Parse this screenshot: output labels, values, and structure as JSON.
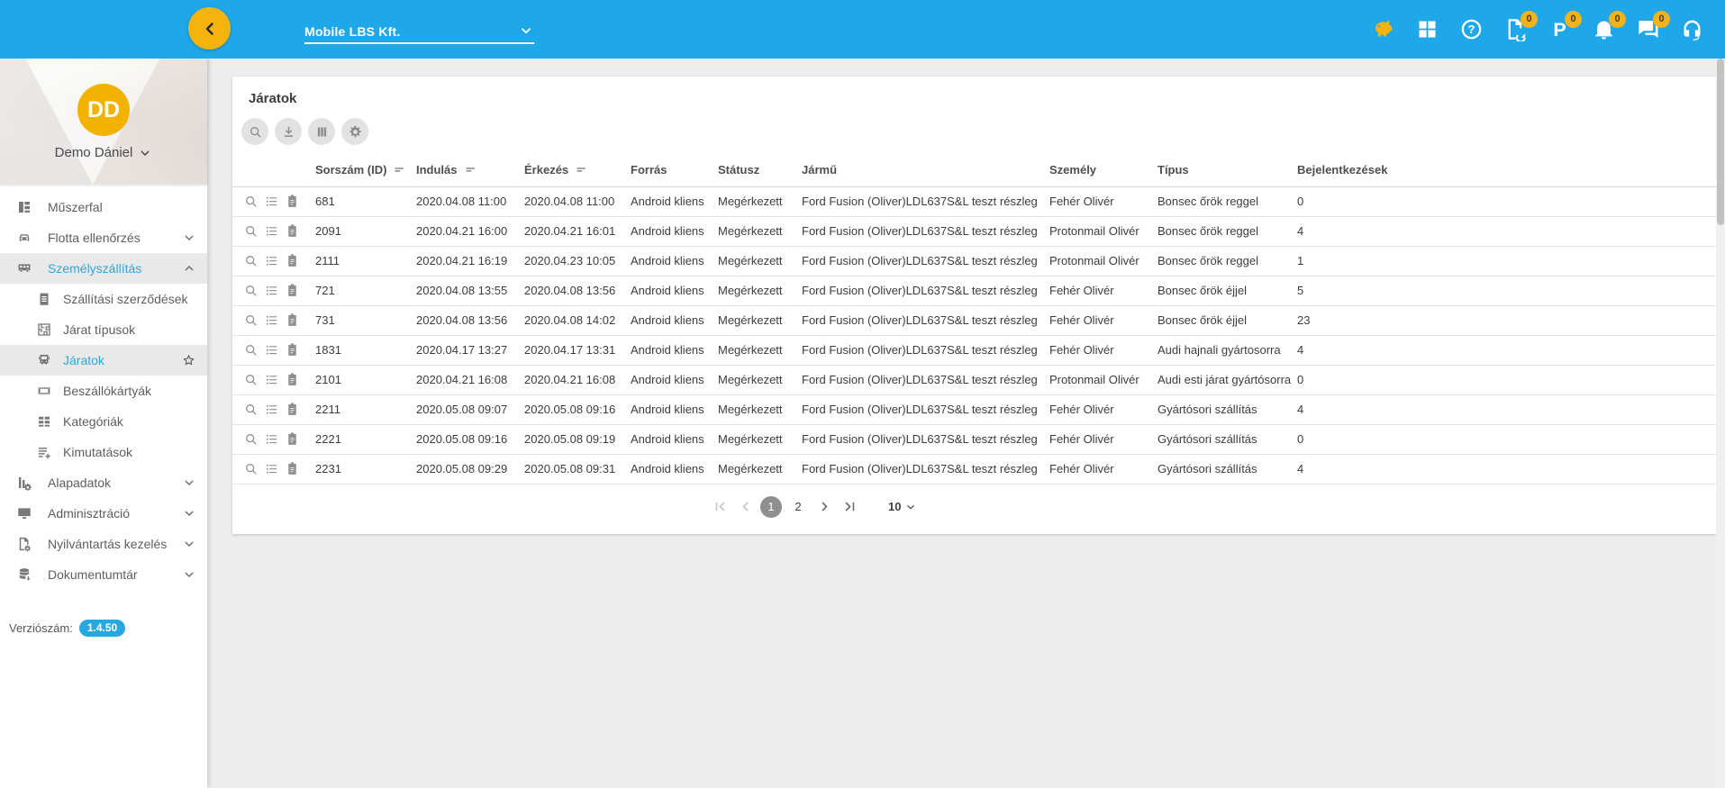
{
  "theme": {
    "primary_blue": "#1fa8e9",
    "accent_yellow": "#f5b40d",
    "link_blue": "#2ea7df"
  },
  "topbar": {
    "company_selector": {
      "value": "Mobile LBS Kft."
    },
    "icons": [
      {
        "name": "piggy-bank-icon",
        "gold": true
      },
      {
        "name": "apps-grid-icon"
      },
      {
        "name": "help-icon"
      },
      {
        "name": "document-sync-icon",
        "badge": "0"
      },
      {
        "name": "parking-icon",
        "badge": "0"
      },
      {
        "name": "notifications-icon",
        "badge": "0"
      },
      {
        "name": "messages-icon",
        "badge": "0"
      },
      {
        "name": "support-icon"
      }
    ]
  },
  "sidebar": {
    "avatar_initials": "DD",
    "user_name": "Demo Dániel",
    "items": [
      {
        "label": "Műszerfal",
        "icon": "dashboard-icon"
      },
      {
        "label": "Flotta ellenőrzés",
        "icon": "car-icon",
        "chevron": "down"
      },
      {
        "label": "Személyszállítás",
        "icon": "bus-icon",
        "chevron": "up",
        "active": true
      },
      {
        "label": "Szállítási szerződések",
        "icon": "contract-icon",
        "sub": true
      },
      {
        "label": "Járat típusok",
        "icon": "route-types-icon",
        "sub": true
      },
      {
        "label": "Járatok",
        "icon": "bus-front-icon",
        "sub": true,
        "selected": true,
        "star": true
      },
      {
        "label": "Beszállókártyák",
        "icon": "boarding-card-icon",
        "sub": true
      },
      {
        "label": "Kategóriák",
        "icon": "categories-icon",
        "sub": true
      },
      {
        "label": "Kimutatások",
        "icon": "reports-icon",
        "sub": true
      },
      {
        "label": "Alapadatok",
        "icon": "base-data-icon",
        "chevron": "down"
      },
      {
        "label": "Adminisztráció",
        "icon": "administration-icon",
        "chevron": "down"
      },
      {
        "label": "Nyilvántartás kezelés",
        "icon": "registry-icon",
        "chevron": "down"
      },
      {
        "label": "Dokumentumtár",
        "icon": "document-store-icon",
        "chevron": "down"
      }
    ],
    "version_label": "Verziószám:",
    "version_value": "1.4.50"
  },
  "main": {
    "title": "Járatok",
    "toolbar": [
      {
        "name": "search-icon"
      },
      {
        "name": "download-icon"
      },
      {
        "name": "columns-icon"
      },
      {
        "name": "settings-icon"
      }
    ],
    "table": {
      "columns": [
        {
          "label": "",
          "sortable": false
        },
        {
          "label": "Sorszám (ID)",
          "sortable": true
        },
        {
          "label": "Indulás",
          "sortable": true
        },
        {
          "label": "Érkezés",
          "sortable": true
        },
        {
          "label": "Forrás",
          "sortable": false
        },
        {
          "label": "Státusz",
          "sortable": false
        },
        {
          "label": "Jármű",
          "sortable": false
        },
        {
          "label": "Személy",
          "sortable": false
        },
        {
          "label": "Típus",
          "sortable": false
        },
        {
          "label": "Bejelentkezések",
          "sortable": false
        }
      ],
      "row_actions": [
        "search-icon",
        "details-icon",
        "clipboard-icon"
      ],
      "rows": [
        {
          "id": "681",
          "departure": "2020.04.08 11:00",
          "arrival": "2020.04.08 11:00",
          "source": "Android kliens",
          "status": "Megérkezett",
          "vehicle": "Ford Fusion (Oliver)LDL637S&L teszt részleg",
          "person": "Fehér Olivér",
          "type": "Bonsec őrök reggel",
          "logins": "0"
        },
        {
          "id": "2091",
          "departure": "2020.04.21 16:00",
          "arrival": "2020.04.21 16:01",
          "source": "Android kliens",
          "status": "Megérkezett",
          "vehicle": "Ford Fusion (Oliver)LDL637S&L teszt részleg",
          "person": "Protonmail Olivér",
          "type": "Bonsec őrök reggel",
          "logins": "4"
        },
        {
          "id": "2111",
          "departure": "2020.04.21 16:19",
          "arrival": "2020.04.23 10:05",
          "source": "Android kliens",
          "status": "Megérkezett",
          "vehicle": "Ford Fusion (Oliver)LDL637S&L teszt részleg",
          "person": "Protonmail Olivér",
          "type": "Bonsec őrök reggel",
          "logins": "1"
        },
        {
          "id": "721",
          "departure": "2020.04.08 13:55",
          "arrival": "2020.04.08 13:56",
          "source": "Android kliens",
          "status": "Megérkezett",
          "vehicle": "Ford Fusion (Oliver)LDL637S&L teszt részleg",
          "person": "Fehér Olivér",
          "type": "Bonsec őrök éjjel",
          "logins": "5"
        },
        {
          "id": "731",
          "departure": "2020.04.08 13:56",
          "arrival": "2020.04.08 14:02",
          "source": "Android kliens",
          "status": "Megérkezett",
          "vehicle": "Ford Fusion (Oliver)LDL637S&L teszt részleg",
          "person": "Fehér Olivér",
          "type": "Bonsec őrök éjjel",
          "logins": "23"
        },
        {
          "id": "1831",
          "departure": "2020.04.17 13:27",
          "arrival": "2020.04.17 13:31",
          "source": "Android kliens",
          "status": "Megérkezett",
          "vehicle": "Ford Fusion (Oliver)LDL637S&L teszt részleg",
          "person": "Fehér Olivér",
          "type": "Audi hajnali gyártosorra",
          "logins": "4"
        },
        {
          "id": "2101",
          "departure": "2020.04.21 16:08",
          "arrival": "2020.04.21 16:08",
          "source": "Android kliens",
          "status": "Megérkezett",
          "vehicle": "Ford Fusion (Oliver)LDL637S&L teszt részleg",
          "person": "Protonmail Olivér",
          "type": "Audi esti járat gyártósorra",
          "logins": "0"
        },
        {
          "id": "2211",
          "departure": "2020.05.08 09:07",
          "arrival": "2020.05.08 09:16",
          "source": "Android kliens",
          "status": "Megérkezett",
          "vehicle": "Ford Fusion (Oliver)LDL637S&L teszt részleg",
          "person": "Fehér Olivér",
          "type": "Gyártósori szállítás",
          "logins": "4"
        },
        {
          "id": "2221",
          "departure": "2020.05.08 09:16",
          "arrival": "2020.05.08 09:19",
          "source": "Android kliens",
          "status": "Megérkezett",
          "vehicle": "Ford Fusion (Oliver)LDL637S&L teszt részleg",
          "person": "Fehér Olivér",
          "type": "Gyártósori szállítás",
          "logins": "0"
        },
        {
          "id": "2231",
          "departure": "2020.05.08 09:29",
          "arrival": "2020.05.08 09:31",
          "source": "Android kliens",
          "status": "Megérkezett",
          "vehicle": "Ford Fusion (Oliver)LDL637S&L teszt részleg",
          "person": "Fehér Olivér",
          "type": "Gyártósori szállítás",
          "logins": "4"
        }
      ]
    },
    "pagination": {
      "pages": [
        "1",
        "2"
      ],
      "current_page": "1",
      "page_size": "10"
    }
  }
}
